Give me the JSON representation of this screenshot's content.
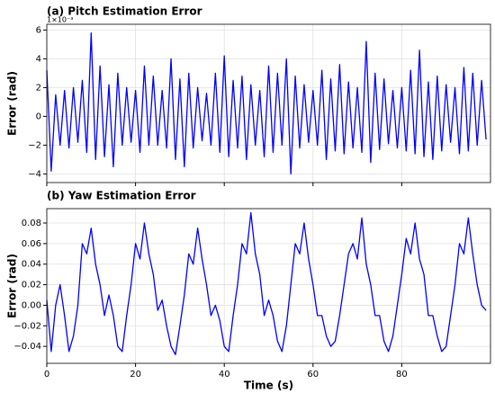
{
  "chart_data": [
    {
      "type": "line",
      "title": "(a) Pitch Estimation Error",
      "y_label": "Error (rad)",
      "y_offset_label": "1×10⁻³",
      "color": "#0000ff",
      "grid": true,
      "x": [
        0,
        1,
        2,
        3,
        4,
        5,
        6,
        7,
        8,
        9,
        10,
        11,
        12,
        13,
        14,
        15,
        16,
        17,
        18,
        19,
        20,
        21,
        22,
        23,
        24,
        25,
        26,
        27,
        28,
        29,
        30,
        31,
        32,
        33,
        34,
        35,
        36,
        37,
        38,
        39,
        40,
        41,
        42,
        43,
        44,
        45,
        46,
        47,
        48,
        49,
        50,
        51,
        52,
        53,
        54,
        55,
        56,
        57,
        58,
        59,
        60,
        61,
        62,
        63,
        64,
        65,
        66,
        67,
        68,
        69,
        70,
        71,
        72,
        73,
        74,
        75,
        76,
        77,
        78,
        79,
        80,
        81,
        82,
        83,
        84,
        85,
        86,
        87,
        88,
        89,
        90,
        91,
        92,
        93,
        94,
        95,
        96,
        97,
        98,
        99
      ],
      "values": [
        3.2,
        -3.8,
        1.5,
        -2,
        1.8,
        -2.2,
        2,
        -1.8,
        2.5,
        -2.5,
        5.8,
        -3,
        3.5,
        -2.8,
        2.2,
        -3.5,
        3,
        -2,
        2,
        -1.8,
        1.8,
        -2.5,
        3.5,
        -2,
        2.8,
        -2,
        1.8,
        -2.2,
        4,
        -3,
        2.6,
        -3.5,
        3,
        -2.2,
        2,
        -1.7,
        1.6,
        -2,
        3,
        -2.5,
        4.2,
        -2.8,
        2.5,
        -2.2,
        2.8,
        -3,
        2.2,
        -2,
        1.8,
        -2.8,
        3.5,
        -2.5,
        3,
        -2,
        4,
        -4,
        2.8,
        -2.2,
        2.2,
        -1.8,
        1.8,
        -2,
        3.2,
        -3,
        2.6,
        -2.4,
        3.6,
        -2.6,
        2.4,
        -2.2,
        2,
        -2.5,
        5.2,
        -3.2,
        3,
        -2.3,
        2.6,
        -1.9,
        1.8,
        -2.2,
        2,
        -2.4,
        3.2,
        -2.6,
        4.6,
        -2.8,
        2.4,
        -3,
        2.8,
        -2.4,
        2.2,
        -1.8,
        2,
        -2.6,
        3.4,
        -2.4,
        3,
        -2,
        2.5,
        -1.6
      ],
      "xlim": [
        0,
        100
      ],
      "xticks": [
        0,
        20,
        40,
        60,
        80
      ],
      "ylim": [
        -4.6,
        6.4
      ],
      "yticks": [
        {
          "value": -4,
          "label": "−4"
        },
        {
          "value": -2,
          "label": "−2"
        },
        0,
        2,
        4,
        6
      ]
    },
    {
      "type": "line",
      "title": "(b) Yaw Estimation Error",
      "y_label": "Error (rad)",
      "x_label": "Time (s)",
      "color": "#0000ff",
      "grid": true,
      "x": [
        0,
        1,
        2,
        3,
        4,
        5,
        6,
        7,
        8,
        9,
        10,
        11,
        12,
        13,
        14,
        15,
        16,
        17,
        18,
        19,
        20,
        21,
        22,
        23,
        24,
        25,
        26,
        27,
        28,
        29,
        30,
        31,
        32,
        33,
        34,
        35,
        36,
        37,
        38,
        39,
        40,
        41,
        42,
        43,
        44,
        45,
        46,
        47,
        48,
        49,
        50,
        51,
        52,
        53,
        54,
        55,
        56,
        57,
        58,
        59,
        60,
        61,
        62,
        63,
        64,
        65,
        66,
        67,
        68,
        69,
        70,
        71,
        72,
        73,
        74,
        75,
        76,
        77,
        78,
        79,
        80,
        81,
        82,
        83,
        84,
        85,
        86,
        87,
        88,
        89,
        90,
        91,
        92,
        93,
        94,
        95,
        96,
        97,
        98,
        99
      ],
      "values": [
        0.005,
        -0.045,
        0.0,
        0.02,
        -0.01,
        -0.045,
        -0.03,
        0.0,
        0.06,
        0.05,
        0.075,
        0.04,
        0.02,
        -0.01,
        0.01,
        -0.01,
        -0.04,
        -0.045,
        -0.01,
        0.02,
        0.06,
        0.045,
        0.08,
        0.05,
        0.03,
        -0.005,
        0.005,
        -0.02,
        -0.04,
        -0.048,
        -0.02,
        0.01,
        0.05,
        0.04,
        0.075,
        0.045,
        0.02,
        -0.01,
        0.0,
        -0.015,
        -0.04,
        -0.045,
        -0.01,
        0.02,
        0.06,
        0.05,
        0.09,
        0.05,
        0.03,
        -0.01,
        0.005,
        -0.01,
        -0.035,
        -0.045,
        -0.02,
        0.02,
        0.06,
        0.05,
        0.08,
        0.045,
        0.02,
        -0.01,
        -0.01,
        -0.03,
        -0.04,
        -0.035,
        -0.01,
        0.02,
        0.05,
        0.06,
        0.045,
        0.085,
        0.04,
        0.02,
        -0.01,
        -0.01,
        -0.035,
        -0.045,
        -0.03,
        0.0,
        0.03,
        0.065,
        0.05,
        0.08,
        0.045,
        0.03,
        -0.01,
        -0.01,
        -0.03,
        -0.045,
        -0.04,
        -0.01,
        0.02,
        0.06,
        0.05,
        0.085,
        0.05,
        0.02,
        0.0,
        -0.005
      ],
      "xlim": [
        0,
        100
      ],
      "xticks": [
        0,
        20,
        40,
        60,
        80
      ],
      "ylim": [
        -0.0565,
        0.094
      ],
      "yticks": [
        {
          "value": -0.04,
          "label": "−0.04"
        },
        {
          "value": -0.02,
          "label": "−0.02"
        },
        {
          "value": 0,
          "label": "0.00"
        },
        0.02,
        0.04,
        0.06,
        0.08
      ]
    }
  ]
}
